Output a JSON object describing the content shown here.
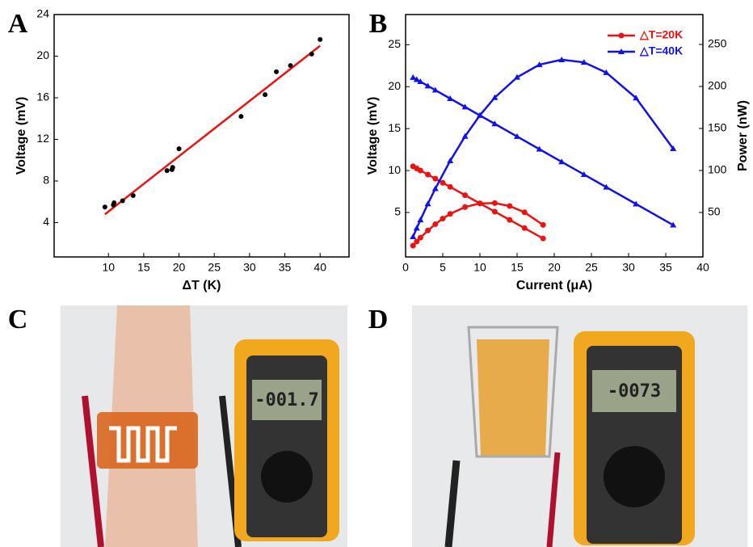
{
  "chart_data": [
    {
      "type": "scatter",
      "label": "A",
      "xlabel": "ΔT (K)",
      "ylabel": "Voltage (mV)",
      "x": [
        9.5,
        10.7,
        10.8,
        12,
        13.5,
        18.3,
        19,
        19.1,
        20,
        28.8,
        32.2,
        33.8,
        35.8,
        38.8,
        40
      ],
      "values": [
        5.5,
        5.7,
        5.9,
        6.1,
        6.6,
        9.0,
        9.1,
        9.3,
        11.1,
        14.2,
        16.3,
        18.5,
        19.1,
        20.2,
        21.6
      ],
      "color": "#000000",
      "fit": {
        "x": [
          9.5,
          40
        ],
        "values": [
          4.8,
          21.0
        ],
        "color": "#ee1111"
      },
      "xlim": [
        2.3,
        44.1
      ],
      "xticks": [
        10,
        15,
        20,
        25,
        30,
        35,
        40
      ],
      "ylim": [
        0.7,
        24
      ],
      "yticks": [
        4,
        8,
        12,
        16,
        20,
        24
      ]
    },
    {
      "type": "line",
      "label": "B",
      "xlabel": "Current (μA)",
      "ylabel": "Voltage (mV)",
      "y2label": "Power (nW)",
      "legend": "upper right",
      "xlim": [
        0,
        40
      ],
      "xticks": [
        0,
        5,
        10,
        15,
        20,
        25,
        30,
        35,
        40
      ],
      "ylim": [
        -0.3,
        28.6
      ],
      "yticks": [
        5,
        10,
        15,
        20,
        25
      ],
      "y2lim": [
        -2.9,
        285.6
      ],
      "y2ticks": [
        50,
        100,
        150,
        200,
        250
      ],
      "series": [
        {
          "name": "△T=20K",
          "color": "#ee1111",
          "marker": "circle",
          "x": [
            1,
            1.5,
            2,
            3,
            4,
            5,
            6,
            8,
            10,
            12,
            14,
            16,
            18.5
          ],
          "values": [
            10.5,
            10.25,
            10.01,
            9.52,
            9.03,
            8.54,
            8.05,
            7.06,
            6.08,
            5.1,
            4.12,
            3.14,
            1.9
          ]
        },
        {
          "name": "△T=40K",
          "color": "#1111ee",
          "marker": "triangle",
          "x": [
            1,
            1.5,
            2,
            3,
            4,
            6,
            8,
            10,
            12,
            15,
            18,
            21,
            24,
            27,
            31,
            36
          ],
          "values": [
            21.1,
            20.85,
            20.6,
            20.09,
            19.59,
            18.58,
            17.58,
            16.57,
            15.57,
            14.06,
            12.55,
            11.04,
            9.53,
            8.02,
            6.01,
            3.5
          ]
        },
        {
          "axis": "y2",
          "color": "#ee1111",
          "marker": "circle",
          "x": [
            1,
            1.5,
            2,
            3,
            4,
            5,
            6,
            8,
            10,
            12,
            14,
            16,
            18.5
          ],
          "values": [
            10.5,
            15.4,
            20.0,
            28.6,
            36.1,
            42.7,
            48.3,
            56.5,
            60.8,
            61.2,
            57.7,
            50.2,
            35.2
          ]
        },
        {
          "axis": "y2",
          "color": "#1111ee",
          "marker": "triangle",
          "x": [
            1,
            1.5,
            2,
            3,
            4,
            6,
            8,
            10,
            12,
            15,
            18,
            21,
            24,
            27,
            31,
            36
          ],
          "values": [
            21.1,
            31.3,
            41.2,
            60.3,
            78.4,
            111.5,
            140.6,
            165.7,
            186.8,
            210.9,
            225.9,
            231.8,
            228.7,
            216.5,
            186.3,
            126.0
          ]
        }
      ]
    }
  ],
  "photos": [
    {
      "label": "C",
      "display": "-001.7"
    },
    {
      "label": "D",
      "display": "-0073"
    }
  ]
}
